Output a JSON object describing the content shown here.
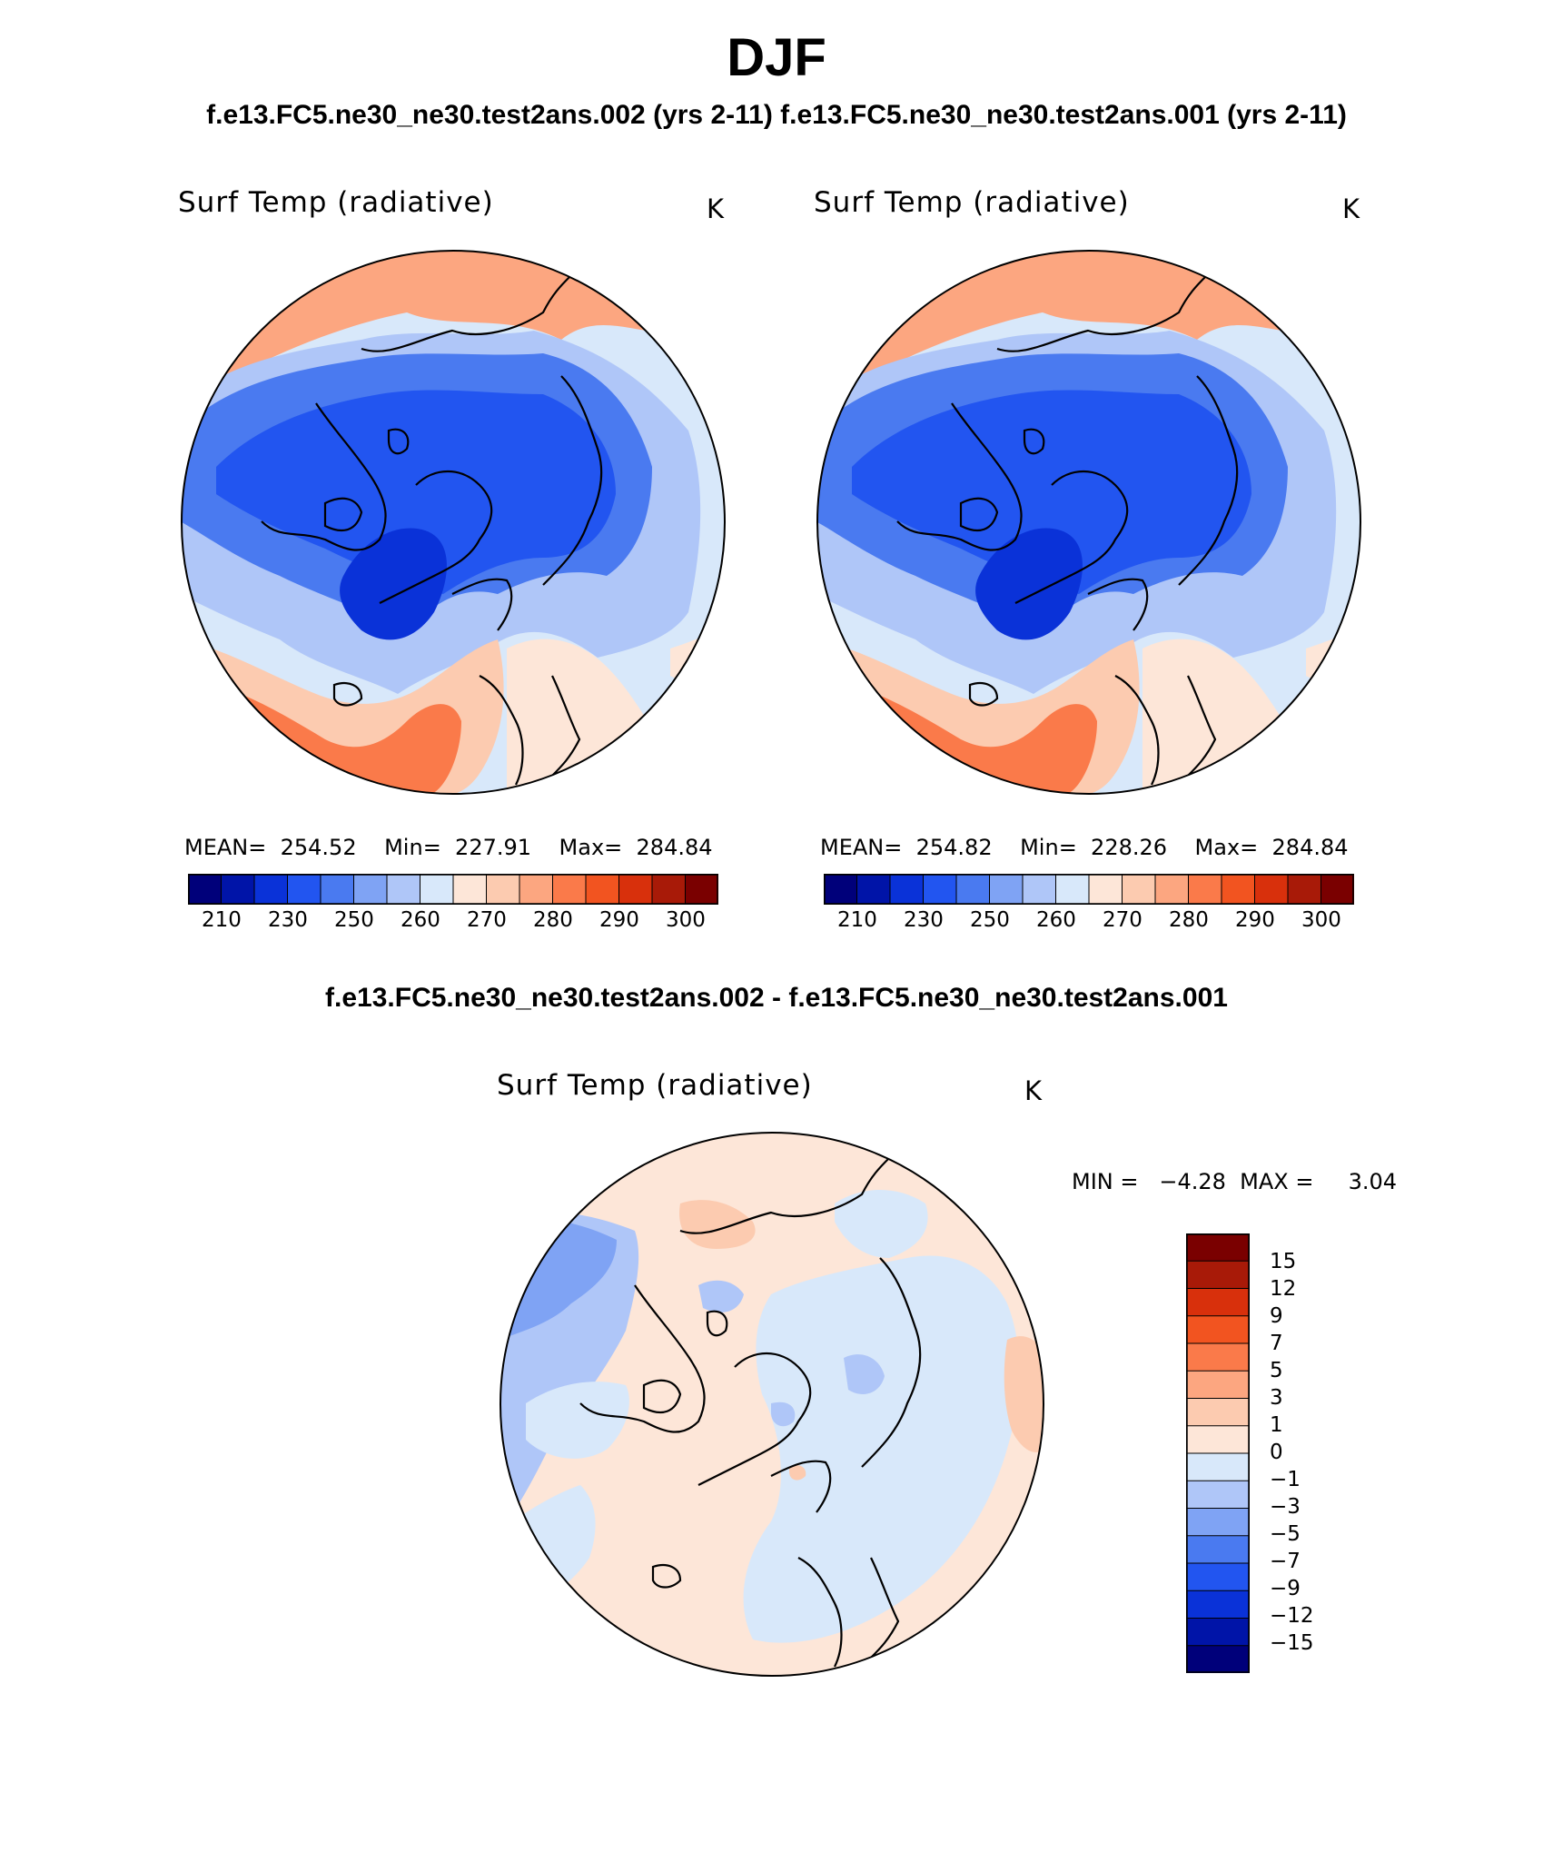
{
  "page": {
    "title": "DJF",
    "subtitle": "f.e13.FC5.ne30_ne30.test2ans.002 (yrs 2-11)  f.e13.FC5.ne30_ne30.test2ans.001 (yrs 2-11)",
    "diff_title": "f.e13.FC5.ne30_ne30.test2ans.002 - f.e13.FC5.ne30_ne30.test2ans.001"
  },
  "panels": [
    {
      "variable": "Surf Temp (radiative)",
      "unit": "K",
      "stats": "MEAN=  254.52    Min=  227.91    Max=  284.84"
    },
    {
      "variable": "Surf Temp (radiative)",
      "unit": "K",
      "stats": "MEAN=  254.82    Min=  228.26    Max=  284.84"
    }
  ],
  "abs_colorbar": {
    "colors": [
      "#00007a",
      "#0014a8",
      "#0a32d8",
      "#2255f0",
      "#4a7af0",
      "#7fa3f4",
      "#afc6f8",
      "#d8e8fa",
      "#fde6d8",
      "#fccbb0",
      "#fca680",
      "#fa7a4a",
      "#f25420",
      "#d8300c",
      "#a81a08",
      "#7a0000"
    ],
    "tick_labels": [
      "210",
      "230",
      "250",
      "260",
      "270",
      "280",
      "290",
      "300"
    ]
  },
  "diff_panel": {
    "variable": "Surf Temp (radiative)",
    "unit": "K",
    "stats": "MIN =   −4.28  MAX =     3.04",
    "colorbar": {
      "colors": [
        "#7a0000",
        "#a81a08",
        "#d8300c",
        "#f25420",
        "#fa7a4a",
        "#fca680",
        "#fccbb0",
        "#fde6d8",
        "#d8e8fa",
        "#afc6f8",
        "#7fa3f4",
        "#4a7af0",
        "#2255f0",
        "#0a32d8",
        "#0014a8",
        "#00007a"
      ],
      "tick_labels": [
        "15",
        "12",
        "9",
        "7",
        "5",
        "3",
        "1",
        "0",
        "−1",
        "−3",
        "−5",
        "−7",
        "−9",
        "−12",
        "−15"
      ]
    }
  }
}
